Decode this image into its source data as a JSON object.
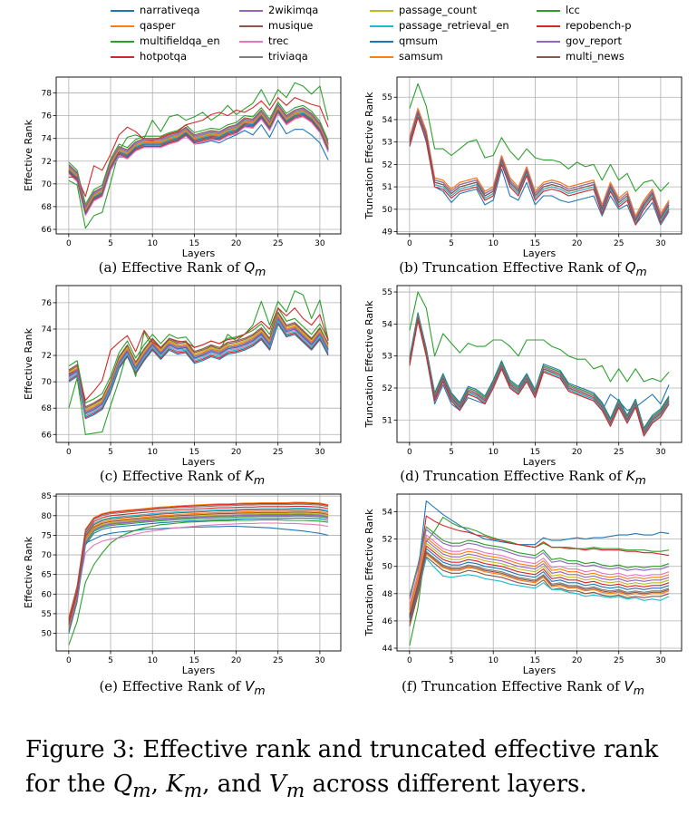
{
  "colors": [
    "#1f77b4",
    "#ff7f0e",
    "#2ca02c",
    "#d62728",
    "#9467bd",
    "#8c564b",
    "#e377c2",
    "#7f7f7f",
    "#bcbd22",
    "#17becf",
    "#1f77b4",
    "#ff7f0e",
    "#2ca02c",
    "#d62728",
    "#9467bd",
    "#8c564b"
  ],
  "legend": {
    "columns": [
      [
        "narrativeqa",
        "qasper",
        "multifieldqa_en",
        "hotpotqa"
      ],
      [
        "2wikimqa",
        "musique",
        "trec",
        "triviaqa"
      ],
      [
        "passage_count",
        "passage_retrieval_en",
        "qmsum",
        "samsum"
      ],
      [
        "lcc",
        "repobench-p",
        "gov_report",
        "multi_news"
      ]
    ]
  },
  "caption": {
    "prefix": "Figure 3: Effective rank and truncated effective rank for the ",
    "q": "Q",
    "k": "K",
    "v": "V",
    "sub": "m",
    "sep1": ", ",
    "sep2": ", and ",
    "suffix": " across different layers."
  },
  "chart_data": [
    {
      "type": "line",
      "id": "a",
      "caption_prefix": "(a)  Effective Rank of ",
      "caption_var": "Q",
      "caption_sub": "m",
      "xlabel": "Layers",
      "ylabel": "Effective Rank",
      "xlim": [
        -1.5,
        32.5
      ],
      "ylim": [
        65.6,
        79.4
      ],
      "xticks": [
        0,
        5,
        10,
        15,
        20,
        25,
        30
      ],
      "yticks": [
        66,
        68,
        70,
        72,
        74,
        76,
        78
      ],
      "grid": true,
      "legend": "top (shared)",
      "base": [
        71.3,
        70.6,
        67.6,
        68.9,
        69.3,
        71.6,
        72.9,
        72.6,
        73.3,
        73.6,
        73.6,
        73.6,
        73.9,
        74.1,
        74.6,
        73.9,
        74.1,
        74.3,
        74.2,
        74.6,
        74.8,
        75.4,
        75.3,
        76.1,
        75.1,
        76.6,
        75.6,
        76.1,
        76.3,
        75.8,
        74.9,
        73.2
      ],
      "offsets": [
        -0.5,
        -0.1,
        0.8,
        -0.3,
        0.0,
        0.4,
        -0.4,
        0.2,
        0.1,
        0.0,
        -0.2,
        0.1,
        0.6,
        -0.2,
        0.3,
        -0.1
      ],
      "overrides": {
        "2": [
          70.3,
          69.9,
          66.1,
          67.2,
          67.5,
          70.1,
          72.9,
          74.1,
          74.3,
          74.0,
          75.6,
          74.6,
          75.9,
          76.1,
          75.6,
          75.9,
          76.3,
          75.6,
          76.1,
          76.9,
          76.1,
          76.6,
          77.1,
          78.3,
          76.9,
          78.3,
          77.6,
          78.9,
          78.6,
          77.9,
          78.6,
          75.6
        ],
        "13": [
          70.6,
          70.6,
          68.9,
          71.6,
          71.2,
          72.6,
          74.3,
          75.0,
          74.6,
          73.9,
          73.8,
          74.1,
          74.4,
          74.6,
          75.2,
          75.4,
          75.6,
          76.1,
          76.3,
          76.0,
          76.5,
          76.3,
          76.7,
          77.3,
          76.5,
          77.6,
          76.9,
          77.6,
          77.3,
          77.0,
          76.8,
          75.0
        ],
        "0": [
          71.1,
          70.3,
          67.3,
          68.6,
          68.9,
          71.2,
          72.4,
          72.3,
          73.0,
          73.3,
          73.3,
          73.3,
          73.6,
          73.8,
          74.3,
          73.5,
          73.6,
          73.8,
          73.6,
          74.0,
          74.3,
          74.7,
          74.3,
          75.2,
          74.1,
          75.6,
          74.4,
          74.8,
          74.8,
          74.3,
          73.6,
          72.1
        ]
      }
    },
    {
      "type": "line",
      "id": "b",
      "caption_prefix": "(b)  Truncation Effective Rank of ",
      "caption_var": "Q",
      "caption_sub": "m",
      "xlabel": "Layers",
      "ylabel": "Truncation Effective Rank",
      "xlim": [
        -1.5,
        32.5
      ],
      "ylim": [
        48.9,
        55.9
      ],
      "xticks": [
        0,
        5,
        10,
        15,
        20,
        25,
        30
      ],
      "yticks": [
        49,
        50,
        51,
        52,
        53,
        54,
        55
      ],
      "grid": true,
      "legend": "top (shared)",
      "base": [
        53.0,
        54.3,
        53.3,
        51.2,
        51.1,
        50.7,
        51.0,
        51.1,
        51.2,
        50.6,
        50.8,
        52.2,
        51.2,
        50.8,
        51.7,
        50.6,
        51.0,
        51.1,
        51.0,
        50.8,
        50.9,
        51.0,
        51.1,
        50.0,
        51.0,
        50.3,
        50.6,
        49.5,
        50.2,
        50.7,
        49.6,
        50.2
      ],
      "offsets": [
        -0.3,
        0.0,
        0.1,
        -0.1,
        0.2,
        0.1,
        -0.2,
        0.0,
        0.1,
        -0.1,
        0.0,
        0.2,
        0.3,
        -0.2,
        0.1,
        0.0
      ],
      "overrides": {
        "12": [
          54.5,
          55.6,
          54.6,
          52.7,
          52.7,
          52.4,
          52.7,
          53.0,
          53.1,
          52.3,
          52.4,
          53.2,
          52.6,
          52.2,
          52.7,
          52.3,
          52.2,
          52.2,
          52.1,
          51.8,
          52.1,
          51.9,
          52.0,
          51.3,
          52.0,
          51.3,
          51.6,
          50.8,
          51.2,
          51.3,
          50.8,
          51.2
        ],
        "0": [
          53.1,
          54.2,
          53.0,
          51.0,
          50.8,
          50.3,
          50.7,
          50.8,
          50.9,
          50.2,
          50.4,
          51.8,
          50.6,
          50.4,
          51.2,
          50.2,
          50.6,
          50.6,
          50.4,
          50.3,
          50.4,
          50.5,
          50.6,
          49.7,
          50.6,
          50.0,
          50.2,
          49.3,
          49.8,
          50.3,
          49.3,
          49.9
        ]
      }
    },
    {
      "type": "line",
      "id": "c",
      "caption_prefix": "(c)  Effective Rank of ",
      "caption_var": "K",
      "caption_sub": "m",
      "xlabel": "Layers",
      "ylabel": "Effective Rank",
      "xlim": [
        -1.5,
        32.5
      ],
      "ylim": [
        65.4,
        77.3
      ],
      "xticks": [
        0,
        5,
        10,
        15,
        20,
        25,
        30
      ],
      "yticks": [
        66,
        68,
        70,
        72,
        74,
        76
      ],
      "grid": true,
      "legend": "top (shared)",
      "base": [
        70.4,
        70.8,
        67.6,
        67.9,
        68.3,
        69.6,
        71.4,
        72.3,
        71.0,
        72.0,
        72.8,
        72.1,
        72.8,
        72.5,
        72.6,
        71.8,
        72.0,
        72.3,
        72.1,
        72.5,
        72.6,
        72.8,
        73.1,
        73.6,
        72.8,
        74.8,
        73.8,
        74.0,
        73.4,
        72.8,
        73.6,
        72.4
      ],
      "offsets": [
        -0.4,
        0.0,
        0.6,
        -0.3,
        0.2,
        0.4,
        -0.1,
        0.1,
        0.3,
        -0.2,
        0.0,
        0.2,
        0.8,
        -0.1,
        0.1,
        0.5
      ],
      "overrides": {
        "2": [
          68.0,
          70.3,
          66.0,
          66.1,
          66.2,
          68.2,
          70.1,
          72.3,
          70.4,
          73.8,
          72.6,
          72.0,
          73.1,
          72.8,
          72.3,
          71.7,
          72.1,
          72.8,
          72.3,
          73.6,
          73.1,
          73.6,
          74.3,
          76.1,
          74.3,
          76.1,
          75.3,
          76.9,
          76.6,
          74.8,
          76.2,
          73.2
        ],
        "13": [
          70.6,
          70.9,
          68.6,
          69.3,
          70.1,
          72.4,
          73.0,
          73.5,
          72.3,
          73.9,
          73.0,
          72.6,
          73.3,
          73.1,
          73.0,
          72.6,
          72.8,
          73.1,
          72.9,
          73.2,
          73.3,
          73.6,
          74.1,
          74.6,
          74.0,
          75.6,
          75.0,
          75.6,
          74.8,
          74.3,
          75.1,
          73.1
        ]
      }
    },
    {
      "type": "line",
      "id": "d",
      "caption_prefix": "(d)  Truncation Effective Rank of ",
      "caption_var": "K",
      "caption_sub": "m",
      "xlabel": "Layers",
      "ylabel": "Truncation Effective Rank",
      "xlim": [
        -1.5,
        32.5
      ],
      "ylim": [
        50.3,
        55.2
      ],
      "xticks": [
        0,
        5,
        10,
        15,
        20,
        25,
        30
      ],
      "yticks": [
        51,
        52,
        53,
        54,
        55
      ],
      "grid": true,
      "legend": "top (shared)",
      "base": [
        52.8,
        54.2,
        53.1,
        51.7,
        52.3,
        51.7,
        51.4,
        51.9,
        51.8,
        51.6,
        52.1,
        52.7,
        52.1,
        51.9,
        52.3,
        51.8,
        52.6,
        52.5,
        52.4,
        52.0,
        51.9,
        51.8,
        51.7,
        51.4,
        50.9,
        51.5,
        51.0,
        51.5,
        50.6,
        51.0,
        51.2,
        51.6
      ],
      "offsets": [
        -0.1,
        0.0,
        0.05,
        -0.05,
        0.1,
        0.05,
        -0.1,
        0.0,
        0.1,
        -0.05,
        0.15,
        0.05,
        0.1,
        -0.1,
        0.05,
        0.0
      ],
      "overrides": {
        "2": [
          53.8,
          55.0,
          54.5,
          53.0,
          53.7,
          53.4,
          53.1,
          53.4,
          53.3,
          53.3,
          53.5,
          53.5,
          53.3,
          53.0,
          53.5,
          53.5,
          53.5,
          53.3,
          53.2,
          53.0,
          52.9,
          52.9,
          52.6,
          52.7,
          52.2,
          52.6,
          52.2,
          52.6,
          52.2,
          52.3,
          52.2,
          52.5
        ],
        "0": [
          52.8,
          54.1,
          53.0,
          51.5,
          52.1,
          51.5,
          51.3,
          51.7,
          51.6,
          51.5,
          52.0,
          52.6,
          52.0,
          51.8,
          52.2,
          51.7,
          52.5,
          52.4,
          52.3,
          51.9,
          51.8,
          51.7,
          51.6,
          51.3,
          51.8,
          51.6,
          51.3,
          51.4,
          51.6,
          51.8,
          51.5,
          52.1
        ]
      }
    },
    {
      "type": "line",
      "id": "e",
      "caption_prefix": "(e)  Effective Rank of ",
      "caption_var": "V",
      "caption_sub": "m",
      "xlabel": "Layers",
      "ylabel": "Effective Rank",
      "xlim": [
        -1.5,
        32.5
      ],
      "ylim": [
        45.5,
        85.5
      ],
      "xticks": [
        0,
        5,
        10,
        15,
        20,
        25,
        30
      ],
      "yticks": [
        50,
        55,
        60,
        65,
        70,
        75,
        80,
        85
      ],
      "grid": true,
      "legend": "top (shared)",
      "base": [
        53.0,
        61.0,
        75.5,
        78.5,
        79.5,
        80.0,
        80.2,
        80.4,
        80.6,
        80.8,
        81.0,
        81.2,
        81.3,
        81.5,
        81.6,
        81.7,
        81.8,
        81.9,
        82.0,
        82.0,
        82.1,
        82.2,
        82.2,
        82.3,
        82.3,
        82.3,
        82.3,
        82.4,
        82.4,
        82.3,
        82.2,
        81.8
      ],
      "offsets": [
        0.3,
        1.0,
        -1.0,
        0.8,
        -2.0,
        -1.5,
        -3.5,
        0.5,
        -1.8,
        -0.5,
        -3.0,
        -1.2,
        -2.5,
        0.0,
        -2.2,
        -0.8
      ],
      "overrides": {
        "2": [
          47.0,
          53.0,
          63.0,
          67.5,
          70.5,
          73.0,
          74.5,
          75.5,
          76.3,
          76.9,
          77.3,
          77.7,
          77.9,
          78.1,
          78.3,
          78.4,
          78.5,
          78.6,
          78.7,
          78.7,
          78.8,
          78.8,
          78.8,
          78.9,
          78.9,
          78.9,
          78.8,
          78.8,
          78.8,
          78.7,
          78.6,
          78.3
        ],
        "0": [
          53.5,
          62.0,
          73.0,
          74.0,
          75.0,
          75.5,
          75.8,
          76.0,
          76.2,
          76.5,
          76.6,
          76.7,
          76.8,
          76.9,
          77.0,
          77.1,
          77.1,
          77.2,
          77.2,
          77.3,
          77.3,
          77.2,
          77.1,
          77.0,
          76.9,
          76.7,
          76.5,
          76.3,
          76.1,
          75.8,
          75.5,
          75.0
        ],
        "6": [
          52.0,
          60.0,
          70.5,
          72.5,
          73.5,
          74.0,
          74.3,
          74.8,
          75.3,
          75.8,
          76.1,
          76.4,
          76.7,
          76.9,
          77.1,
          77.3,
          77.5,
          77.6,
          77.7,
          77.8,
          77.9,
          78.0,
          78.0,
          78.1,
          78.1,
          78.1,
          78.0,
          78.0,
          77.9,
          77.8,
          77.6,
          77.3
        ]
      }
    },
    {
      "type": "line",
      "id": "f",
      "caption_prefix": "(f)  Truncation Effective Rank of ",
      "caption_var": "V",
      "caption_sub": "m",
      "xlabel": "Layers",
      "ylabel": "Truncation Effective Rank",
      "xlim": [
        -1.5,
        32.5
      ],
      "ylim": [
        43.8,
        55.3
      ],
      "xticks": [
        0,
        5,
        10,
        15,
        20,
        25,
        30
      ],
      "yticks": [
        44,
        46,
        48,
        50,
        52,
        54
      ],
      "grid": true,
      "legend": "top (shared)",
      "base": [
        46.2,
        48.5,
        51.3,
        50.8,
        50.3,
        50.1,
        50.1,
        50.3,
        50.2,
        50.0,
        49.9,
        49.8,
        49.6,
        49.4,
        49.3,
        49.2,
        49.6,
        48.9,
        49.0,
        48.8,
        48.8,
        48.6,
        48.7,
        48.5,
        48.4,
        48.5,
        48.3,
        48.4,
        48.3,
        48.4,
        48.4,
        48.6
      ],
      "offsets": [
        0.3,
        -0.4,
        2.0,
        1.2,
        0.6,
        -0.6,
        1.0,
        -0.2,
        0.4,
        -0.9,
        0.0,
        0.8,
        1.6,
        0.2,
        1.4,
        -0.3
      ],
      "overrides": {
        "0": [
          46.5,
          49.5,
          54.8,
          54.3,
          53.8,
          53.4,
          53.0,
          52.6,
          52.3,
          52.0,
          51.9,
          51.8,
          51.7,
          51.6,
          51.6,
          51.6,
          52.1,
          51.9,
          51.9,
          52.0,
          52.1,
          52.0,
          52.1,
          52.1,
          52.2,
          52.3,
          52.3,
          52.4,
          52.3,
          52.3,
          52.5,
          52.4
        ],
        "3": [
          46.3,
          49.3,
          53.7,
          53.3,
          53.0,
          52.8,
          52.6,
          52.5,
          52.3,
          52.2,
          52.0,
          51.9,
          51.7,
          51.6,
          51.5,
          51.4,
          51.8,
          51.4,
          51.4,
          51.3,
          51.3,
          51.2,
          51.3,
          51.2,
          51.2,
          51.2,
          51.1,
          51.1,
          51.0,
          51.0,
          50.9,
          50.8
        ],
        "2": [
          44.2,
          47.0,
          51.8,
          52.6,
          53.6,
          53.2,
          52.9,
          52.8,
          52.6,
          52.3,
          52.1,
          51.9,
          51.8,
          51.6,
          51.5,
          51.4,
          51.7,
          51.4,
          51.4,
          51.4,
          51.3,
          51.3,
          51.4,
          51.3,
          51.3,
          51.3,
          51.2,
          51.2,
          51.2,
          51.1,
          51.1,
          51.2
        ],
        "9": [
          46.0,
          48.2,
          50.6,
          49.9,
          49.3,
          49.2,
          49.3,
          49.4,
          49.3,
          49.1,
          49.0,
          48.9,
          48.7,
          48.6,
          48.5,
          48.4,
          48.8,
          48.3,
          48.3,
          48.1,
          48.0,
          47.8,
          47.9,
          47.8,
          47.7,
          47.8,
          47.6,
          47.7,
          47.5,
          47.6,
          47.5,
          47.8
        ]
      }
    }
  ]
}
